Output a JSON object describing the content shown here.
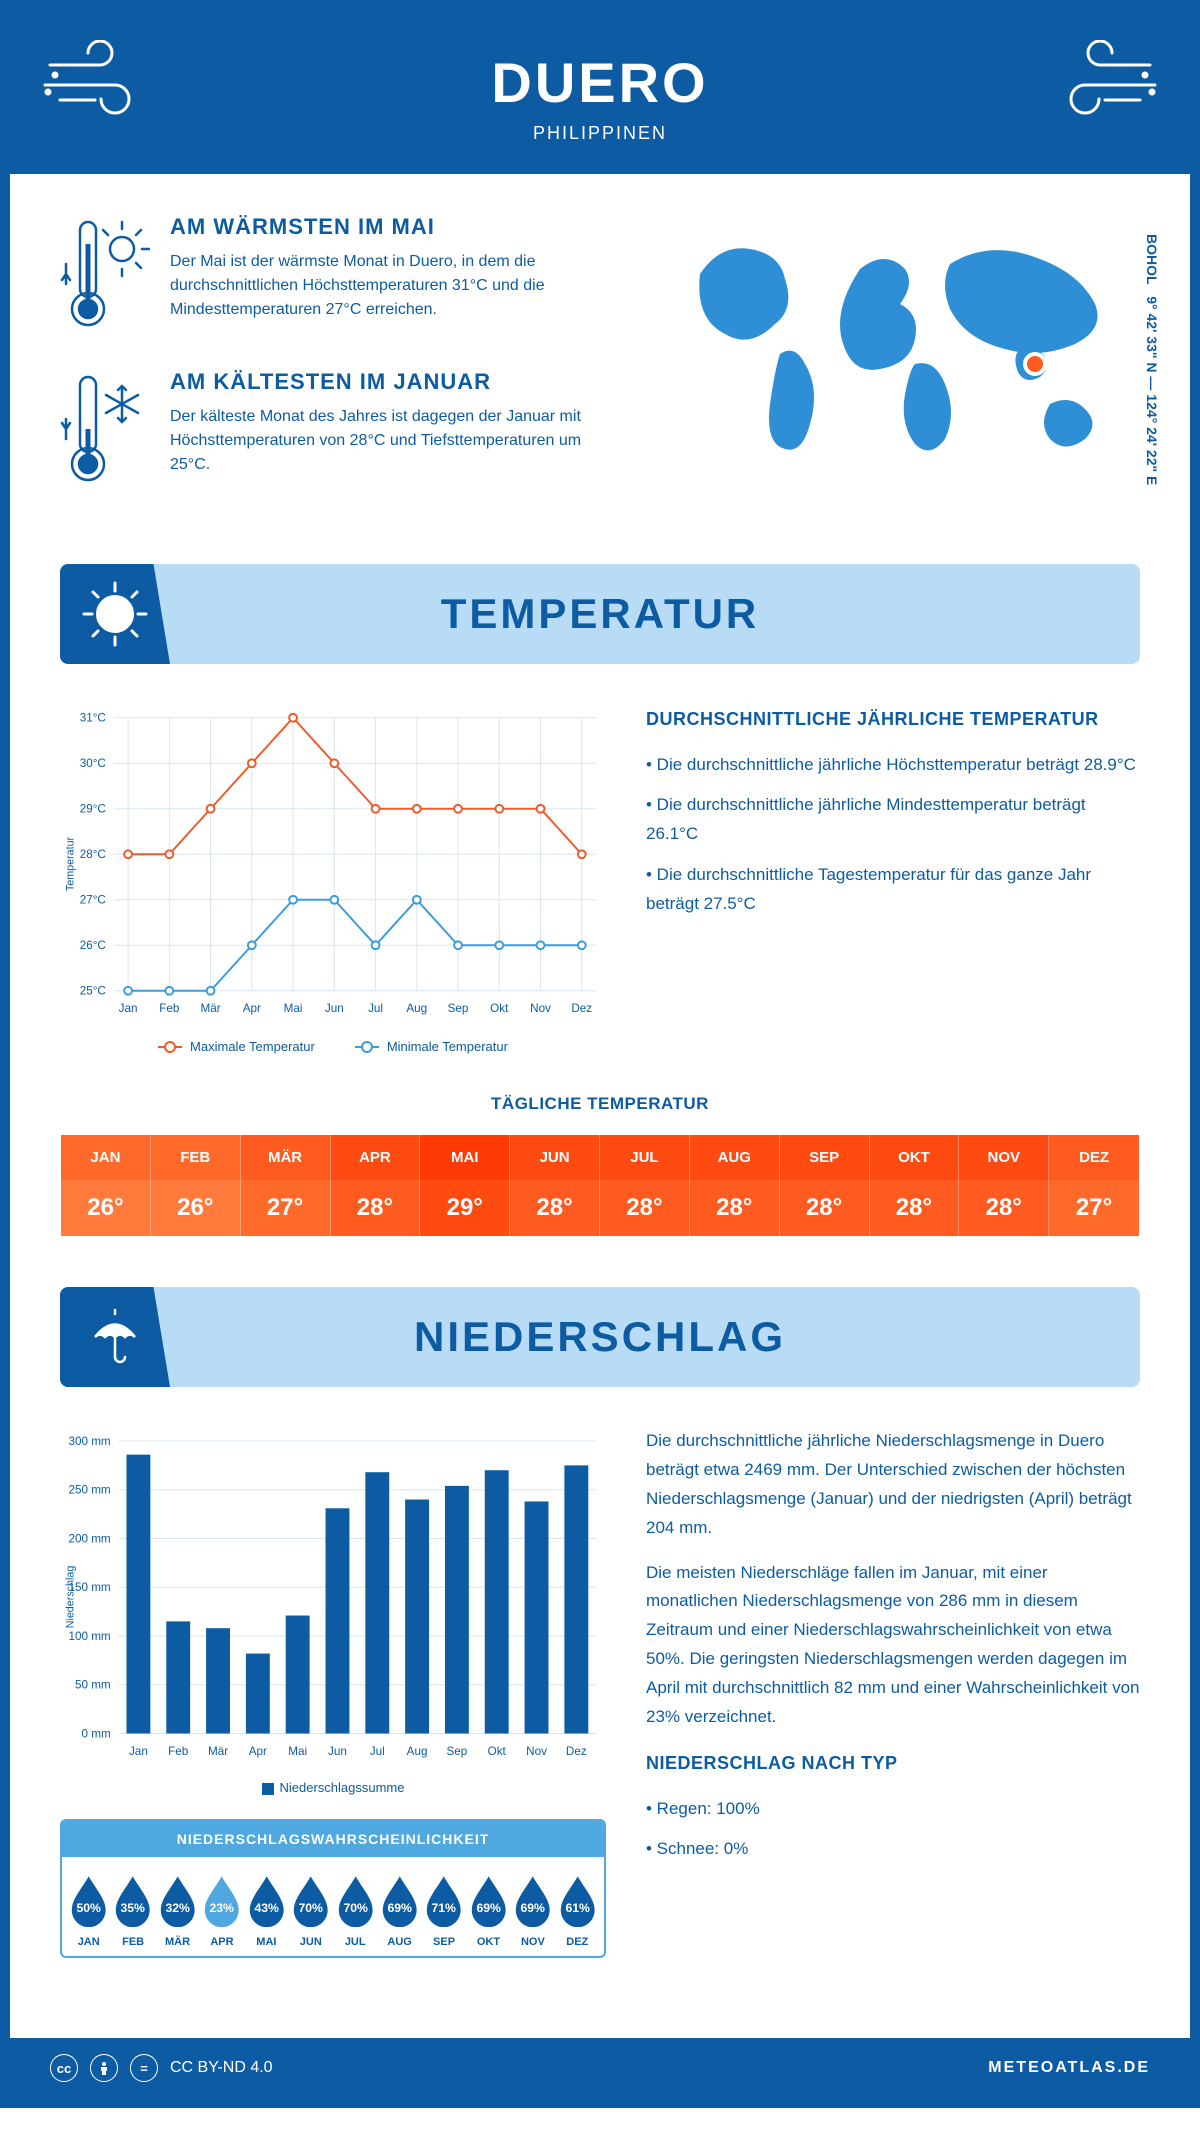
{
  "header": {
    "title": "DUERO",
    "subtitle": "PHILIPPINEN",
    "wind_stroke": "#ffffff"
  },
  "intro": {
    "warm": {
      "title": "AM WÄRMSTEN IM MAI",
      "text": "Der Mai ist der wärmste Monat in Duero, in dem die durchschnittlichen Höchsttemperaturen 31°C und die Mindesttemperaturen 27°C erreichen."
    },
    "cold": {
      "title": "AM KÄLTESTEN IM JANUAR",
      "text": "Der kälteste Monat des Jahres ist dagegen der Januar mit Höchsttemperaturen von 28°C und Tiefsttemperaturen um 25°C."
    },
    "coords": "9° 42' 33\" N — 124° 24' 22\" E",
    "region": "BOHOL",
    "map_fill": "#2e8fd6",
    "marker_fill": "#ff5a1f",
    "marker_x": 375,
    "marker_y": 150
  },
  "colors": {
    "primary": "#0d5ca3",
    "ltblue": "#b8dcf5",
    "midblue": "#4fa8e0",
    "grid": "#d7e6f2",
    "max_line": "#f05a28",
    "min_line": "#3b9cdc"
  },
  "temp_section": {
    "header": "TEMPERATUR",
    "side_title": "DURCHSCHNITTLICHE JÄHRLICHE TEMPERATUR",
    "bullets": [
      "• Die durchschnittliche jährliche Höchsttemperatur beträgt 28.9°C",
      "• Die durchschnittliche jährliche Mindesttemperatur beträgt 26.1°C",
      "• Die durchschnittliche Tagestemperatur für das ganze Jahr beträgt 27.5°C"
    ],
    "chart": {
      "months": [
        "Jan",
        "Feb",
        "Mär",
        "Apr",
        "Mai",
        "Jun",
        "Jul",
        "Aug",
        "Sep",
        "Okt",
        "Nov",
        "Dez"
      ],
      "max": [
        28,
        28,
        29,
        30,
        31,
        30,
        29,
        29,
        29,
        29,
        29,
        28
      ],
      "min": [
        25,
        25,
        25,
        26,
        27,
        27,
        26,
        27,
        26,
        26,
        26,
        26
      ],
      "ylabel": "Temperatur",
      "y_ticks": [
        "25°C",
        "26°C",
        "27°C",
        "28°C",
        "29°C",
        "30°C",
        "31°C"
      ],
      "y_min": 25,
      "y_max": 31,
      "legend_max": "Maximale Temperatur",
      "legend_min": "Minimale Temperatur",
      "axis_fontsize": 12,
      "line_width": 2,
      "marker_radius": 4
    },
    "daily": {
      "title": "TÄGLICHE TEMPERATUR",
      "months": [
        "JAN",
        "FEB",
        "MÄR",
        "APR",
        "MAI",
        "JUN",
        "JUL",
        "AUG",
        "SEP",
        "OKT",
        "NOV",
        "DEZ"
      ],
      "values": [
        "26°",
        "26°",
        "27°",
        "28°",
        "29°",
        "28°",
        "28°",
        "28°",
        "28°",
        "28°",
        "28°",
        "27°"
      ],
      "row1_colors": [
        "#ff6a2b",
        "#ff6a2b",
        "#ff5a1f",
        "#ff4a12",
        "#ff3a05",
        "#ff4a12",
        "#ff4a12",
        "#ff4a12",
        "#ff4a12",
        "#ff4a12",
        "#ff4a12",
        "#ff5a1f"
      ],
      "row2_colors": [
        "#ff7a3b",
        "#ff7a3b",
        "#ff6a2b",
        "#ff5a1f",
        "#ff4a12",
        "#ff5a1f",
        "#ff5a1f",
        "#ff5a1f",
        "#ff5a1f",
        "#ff5a1f",
        "#ff5a1f",
        "#ff6a2b"
      ]
    }
  },
  "precip_section": {
    "header": "NIEDERSCHLAG",
    "para1": "Die durchschnittliche jährliche Niederschlagsmenge in Duero beträgt etwa 2469 mm. Der Unterschied zwischen der höchsten Niederschlagsmenge (Januar) und der niedrigsten (April) beträgt 204 mm.",
    "para2": "Die meisten Niederschläge fallen im Januar, mit einer monatlichen Niederschlagsmenge von 286 mm in diesem Zeitraum und einer Niederschlagswahrscheinlichkeit von etwa 50%. Die geringsten Niederschlagsmengen werden dagegen im April mit durchschnittlich 82 mm und einer Wahrscheinlichkeit von 23% verzeichnet.",
    "type_title": "NIEDERSCHLAG NACH TYP",
    "type_bullets": [
      "• Regen: 100%",
      "• Schnee: 0%"
    ],
    "chart": {
      "months": [
        "Jan",
        "Feb",
        "Mär",
        "Apr",
        "Mai",
        "Jun",
        "Jul",
        "Aug",
        "Sep",
        "Okt",
        "Nov",
        "Dez"
      ],
      "values": [
        286,
        115,
        108,
        82,
        121,
        231,
        268,
        240,
        254,
        270,
        238,
        275
      ],
      "ylabel": "Niederschlag",
      "y_ticks": [
        0,
        50,
        100,
        150,
        200,
        250,
        300
      ],
      "y_suffix": " mm",
      "y_max": 300,
      "bar_color": "#0d5ca3",
      "legend": "Niederschlagssumme",
      "axis_fontsize": 12
    },
    "prob": {
      "title": "NIEDERSCHLAGSWAHRSCHEINLICHKEIT",
      "months": [
        "JAN",
        "FEB",
        "MÄR",
        "APR",
        "MAI",
        "JUN",
        "JUL",
        "AUG",
        "SEP",
        "OKT",
        "NOV",
        "DEZ"
      ],
      "values": [
        "50%",
        "35%",
        "32%",
        "23%",
        "43%",
        "70%",
        "70%",
        "69%",
        "71%",
        "69%",
        "69%",
        "61%"
      ],
      "colors": [
        "#0d5ca3",
        "#0d5ca3",
        "#0d5ca3",
        "#4fa8e0",
        "#0d5ca3",
        "#0d5ca3",
        "#0d5ca3",
        "#0d5ca3",
        "#0d5ca3",
        "#0d5ca3",
        "#0d5ca3",
        "#0d5ca3"
      ]
    }
  },
  "footer": {
    "license": "CC BY-ND 4.0",
    "site": "METEOATLAS.DE"
  }
}
